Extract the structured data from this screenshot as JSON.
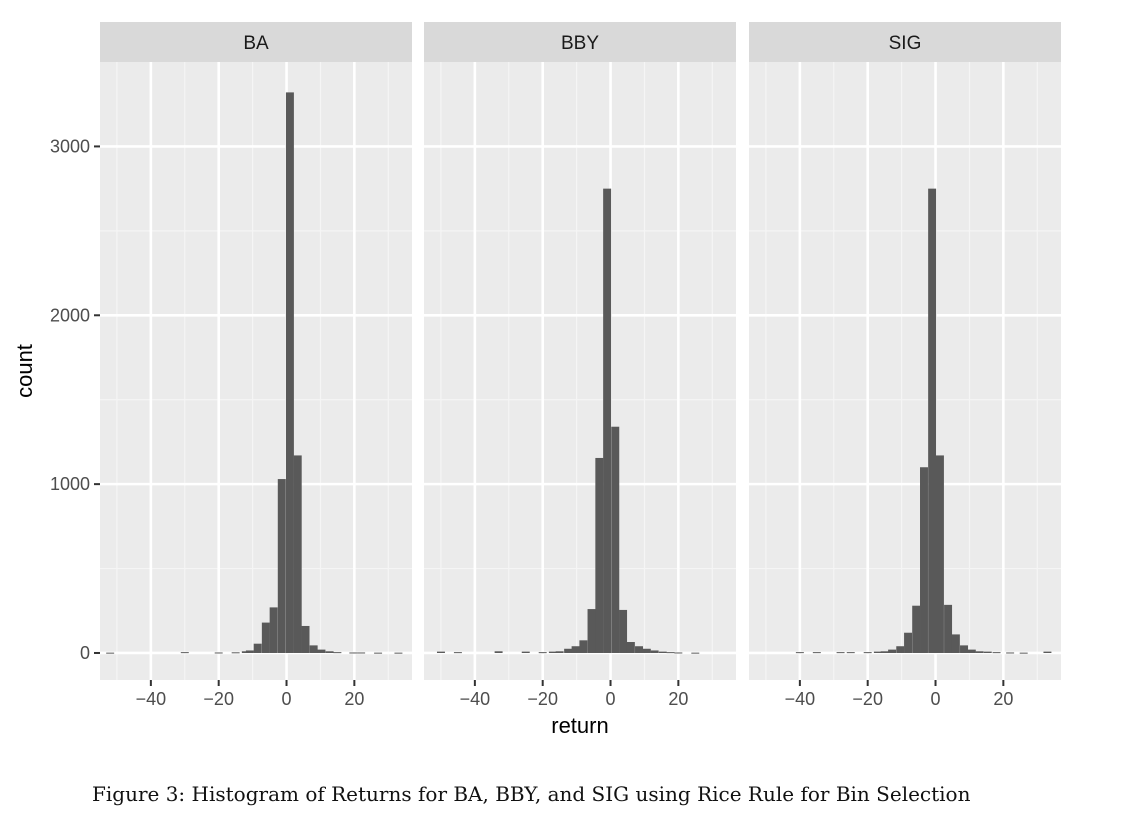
{
  "chart_data": {
    "type": "bar",
    "title": "",
    "xlabel": "return",
    "ylabel": "count",
    "xlim": [
      -55,
      37
    ],
    "ylim": [
      -160,
      3500
    ],
    "x_ticks": [
      -40,
      -20,
      0,
      20
    ],
    "y_ticks": [
      0,
      1000,
      2000,
      3000
    ],
    "x_tick_labels": [
      "−40",
      "−20",
      "0",
      "20"
    ],
    "y_tick_labels": [
      "0",
      "1000",
      "2000",
      "3000"
    ],
    "bin_width": 2.35,
    "grid": true,
    "facets": [
      {
        "name": "BA",
        "bins": [
          [
            -52,
            2
          ],
          [
            -30,
            5
          ],
          [
            -20,
            3
          ],
          [
            -15,
            4
          ],
          [
            -12,
            10
          ],
          [
            -10.8,
            15
          ],
          [
            -8.5,
            55
          ],
          [
            -6.1,
            180
          ],
          [
            -3.8,
            270
          ],
          [
            -1.4,
            1030
          ],
          [
            1.0,
            3320
          ],
          [
            3.3,
            1170
          ],
          [
            5.6,
            160
          ],
          [
            8.0,
            45
          ],
          [
            10.3,
            20
          ],
          [
            12.7,
            10
          ],
          [
            15.0,
            5
          ],
          [
            19.7,
            3
          ],
          [
            22.0,
            3
          ],
          [
            27.0,
            2
          ],
          [
            33.0,
            2
          ]
        ]
      },
      {
        "name": "BBY",
        "bins": [
          [
            -50,
            8
          ],
          [
            -45,
            5
          ],
          [
            -33,
            10
          ],
          [
            -25,
            8
          ],
          [
            -20,
            5
          ],
          [
            -17,
            8
          ],
          [
            -15,
            10
          ],
          [
            -12.5,
            25
          ],
          [
            -10.3,
            40
          ],
          [
            -8,
            75
          ],
          [
            -5.6,
            260
          ],
          [
            -3.3,
            1155
          ],
          [
            -1.0,
            2750
          ],
          [
            1.4,
            1340
          ],
          [
            3.7,
            255
          ],
          [
            6.0,
            65
          ],
          [
            8.4,
            40
          ],
          [
            10.7,
            25
          ],
          [
            13.0,
            15
          ],
          [
            15.4,
            8
          ],
          [
            17.7,
            5
          ],
          [
            20.0,
            3
          ],
          [
            25.0,
            2
          ]
        ]
      },
      {
        "name": "SIG",
        "bins": [
          [
            -40,
            5
          ],
          [
            -35,
            5
          ],
          [
            -28,
            5
          ],
          [
            -25,
            5
          ],
          [
            -20,
            5
          ],
          [
            -17,
            8
          ],
          [
            -15,
            10
          ],
          [
            -12.8,
            20
          ],
          [
            -10.4,
            40
          ],
          [
            -8.1,
            120
          ],
          [
            -5.7,
            280
          ],
          [
            -3.4,
            1100
          ],
          [
            -1.0,
            2750
          ],
          [
            1.3,
            1170
          ],
          [
            3.7,
            285
          ],
          [
            6.0,
            110
          ],
          [
            8.4,
            45
          ],
          [
            10.7,
            20
          ],
          [
            13.0,
            10
          ],
          [
            15.4,
            8
          ],
          [
            18.0,
            5
          ],
          [
            22.0,
            3
          ],
          [
            26.0,
            2
          ],
          [
            33.0,
            8
          ]
        ]
      }
    ]
  },
  "caption": "Figure 3: Histogram of Returns for BA, BBY, and SIG using Rice Rule for Bin Selection",
  "colors": {
    "panel": "#EBEBEB",
    "strip": "#D9D9D9",
    "grid_major": "#FFFFFF",
    "grid_minor": "#F5F5F5",
    "bar": "#595959",
    "tick": "#333333"
  }
}
